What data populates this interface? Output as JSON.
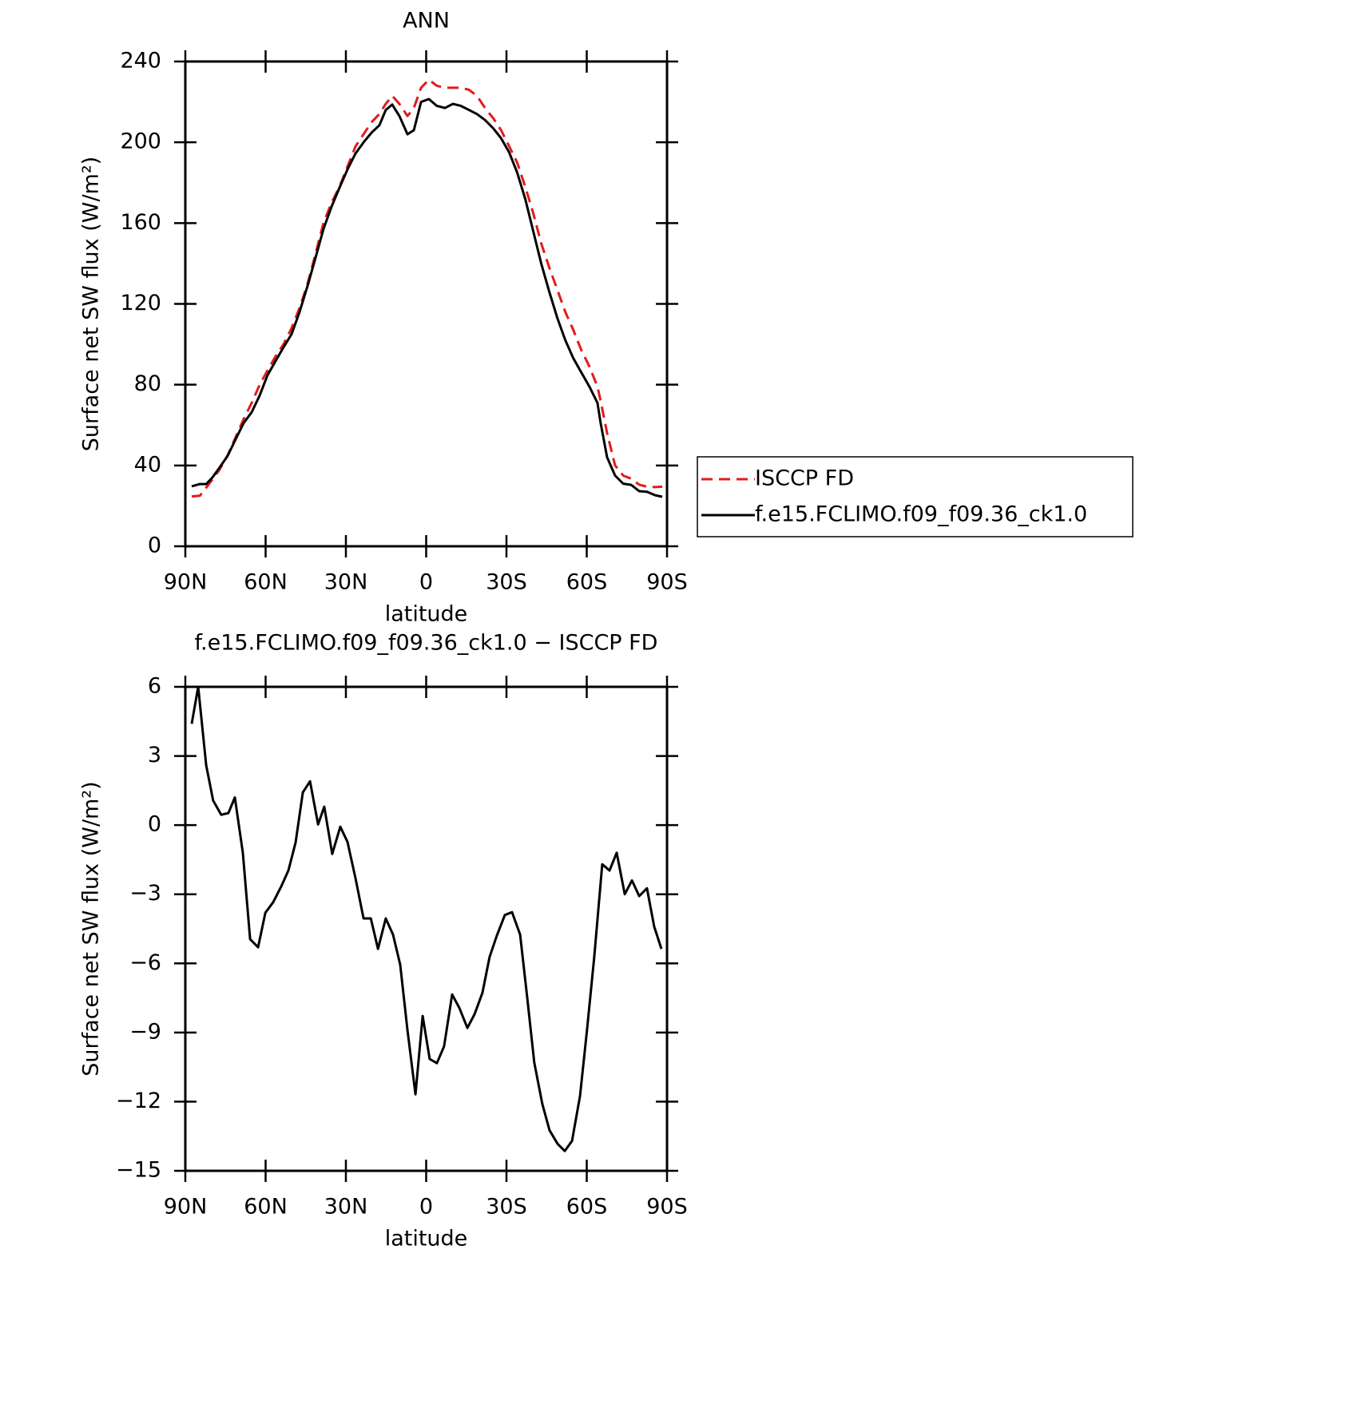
{
  "chart_data": [
    {
      "type": "line",
      "title": "ANN",
      "xlabel": "latitude",
      "ylabel": "Surface net SW flux (W/m²)",
      "x": [
        87.6,
        84.6,
        82.2,
        79.9,
        77.2,
        74.2,
        71.2,
        68.2,
        65.2,
        62.2,
        59.3,
        56.3,
        53.3,
        50.3,
        47.3,
        44.3,
        41.3,
        38.4,
        35.4,
        32.4,
        29.4,
        26.4,
        23.4,
        20.4,
        17.5,
        15.1,
        12.7,
        10,
        7,
        4.6,
        1.9,
        -1,
        -4,
        -7,
        -10,
        -13,
        -16,
        -19,
        -22,
        -25,
        -28,
        -31,
        -34,
        -37,
        -40,
        -43,
        -46,
        -49,
        -52,
        -55,
        -58,
        -61,
        -64,
        -65.2,
        -67.6,
        -70.6,
        -73.6,
        -76.6,
        -79.6,
        -82.5,
        -85.5,
        -88.2
      ],
      "series": [
        {
          "name": "ISCCP FD",
          "color": "#e41a1c",
          "dash": true,
          "values": [
            24.7,
            25,
            29,
            33,
            38,
            45,
            54,
            63,
            71,
            80,
            87,
            94,
            100,
            108,
            118,
            130,
            145,
            160,
            170,
            178,
            188,
            198,
            204,
            210,
            214,
            219,
            223,
            219,
            213,
            217,
            227,
            231,
            228,
            227,
            227,
            227,
            226,
            223,
            217,
            212,
            206,
            198,
            190,
            178,
            165,
            150,
            138,
            127,
            116,
            107,
            97,
            89,
            79,
            72,
            56,
            40,
            35,
            33.5,
            30.5,
            29.5,
            29.3,
            29.5
          ]
        },
        {
          "name": "f.e15.FCLIMO.f09_f09.36_ck1.0",
          "color": "#000000",
          "dash": false,
          "values": [
            29.7,
            30.8,
            30.8,
            34,
            39,
            44.7,
            53,
            61,
            66.4,
            74.7,
            84.6,
            91.7,
            98.5,
            105,
            116,
            129,
            143,
            157,
            168,
            177.5,
            186.6,
            194.5,
            200,
            204.8,
            208.4,
            216,
            218.7,
            213,
            204,
            206,
            220,
            221.4,
            218,
            217,
            219,
            218,
            216,
            214,
            211,
            207,
            202,
            195,
            185,
            172,
            156,
            140,
            126,
            113,
            102,
            93,
            86,
            79,
            71,
            61,
            44,
            35,
            31,
            30.4,
            27.3,
            27,
            25.3,
            24.5
          ]
        }
      ],
      "xlim": [
        90,
        -90
      ],
      "xticks": [
        {
          "value": 90,
          "label": "90N"
        },
        {
          "value": 60,
          "label": "60N"
        },
        {
          "value": 30,
          "label": "30N"
        },
        0,
        {
          "value": -30,
          "label": "30S"
        },
        {
          "value": -60,
          "label": "60S"
        },
        {
          "value": -90,
          "label": "90S"
        }
      ],
      "ylim": [
        0,
        240
      ],
      "yticks": [
        0,
        40,
        80,
        120,
        160,
        200,
        240
      ],
      "legend": "right"
    },
    {
      "type": "line",
      "title": "f.e15.FCLIMO.f09_f09.36_ck1.0 − ISCCP FD",
      "xlabel": "latitude",
      "ylabel": "Surface net SW flux (W/m²)",
      "x": [
        87.6,
        85.2,
        82.2,
        79.6,
        76.6,
        73.9,
        71.5,
        68.5,
        65.8,
        62.8,
        60.1,
        57.2,
        54.2,
        51.5,
        48.8,
        46.1,
        43.4,
        40.4,
        38.1,
        35.1,
        32.1,
        29.4,
        26.4,
        23.4,
        20.7,
        18,
        15.1,
        12.4,
        9.7,
        7,
        4,
        1.3,
        -1.3,
        -4,
        -6.7,
        -9.7,
        -12.4,
        -15.4,
        -18.1,
        -21,
        -23.7,
        -26.4,
        -29.4,
        -32.1,
        -35.1,
        -37.8,
        -40.4,
        -43.4,
        -46.1,
        -49.1,
        -51.8,
        -54.5,
        -57.5,
        -60.1,
        -62.8,
        -65.8,
        -68.5,
        -71.2,
        -74.2,
        -76.9,
        -79.6,
        -82.5,
        -85.2,
        -87.9
      ],
      "color": "#000000",
      "values": [
        4.4,
        6.0,
        2.6,
        1.07,
        0.45,
        0.52,
        1.2,
        -1.2,
        -4.95,
        -5.3,
        -3.8,
        -3.35,
        -2.67,
        -1.97,
        -0.76,
        1.42,
        1.9,
        0.03,
        0.8,
        -1.25,
        -0.07,
        -0.73,
        -2.32,
        -4.05,
        -4.05,
        -5.37,
        -4.05,
        -4.75,
        -6.06,
        -8.9,
        -11.68,
        -8.28,
        -10.15,
        -10.33,
        -9.6,
        -7.35,
        -7.93,
        -8.8,
        -8.2,
        -7.28,
        -5.72,
        -4.8,
        -3.9,
        -3.78,
        -4.75,
        -7.52,
        -10.3,
        -12.1,
        -13.24,
        -13.83,
        -14.14,
        -13.7,
        -11.75,
        -8.9,
        -5.72,
        -1.7,
        -1.97,
        -1.2,
        -3.0,
        -2.4,
        -3.08,
        -2.74,
        -4.4,
        -5.37
      ],
      "xlim": [
        90,
        -90
      ],
      "xticks": [
        {
          "value": 90,
          "label": "90N"
        },
        {
          "value": 60,
          "label": "60N"
        },
        {
          "value": 30,
          "label": "30N"
        },
        0,
        {
          "value": -30,
          "label": "30S"
        },
        {
          "value": -60,
          "label": "60S"
        },
        {
          "value": -90,
          "label": "90S"
        }
      ],
      "ylim": [
        -15,
        6
      ],
      "yticks": [
        {
          "value": -15,
          "label": "−15"
        },
        {
          "value": -12,
          "label": "−12"
        },
        {
          "value": -9,
          "label": "−9"
        },
        {
          "value": -6,
          "label": "−6"
        },
        {
          "value": -3,
          "label": "−3"
        },
        0,
        3,
        6
      ]
    }
  ]
}
